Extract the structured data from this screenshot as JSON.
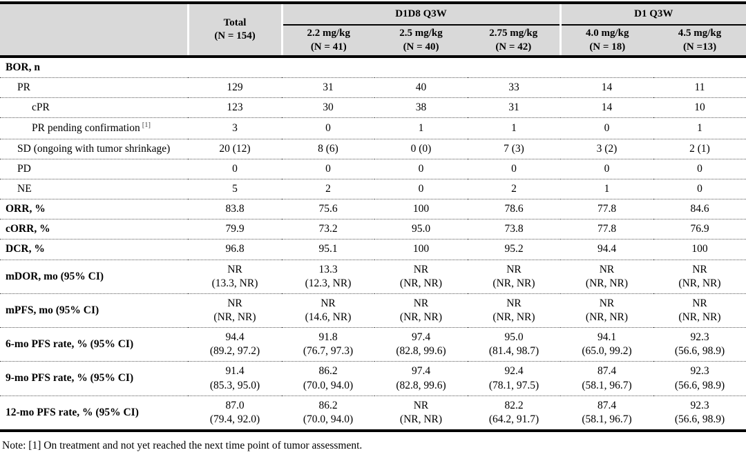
{
  "header": {
    "corner": "",
    "total": {
      "line1": "Total",
      "line2": "(N = 154)"
    },
    "groups": [
      {
        "label": "D1D8 Q3W",
        "cols": [
          {
            "dose": "2.2 mg/kg",
            "n": "(N = 41)"
          },
          {
            "dose": "2.5 mg/kg",
            "n": "(N = 40)"
          },
          {
            "dose": "2.75 mg/kg",
            "n": "(N = 42)"
          }
        ]
      },
      {
        "label": "D1 Q3W",
        "cols": [
          {
            "dose": "4.0 mg/kg",
            "n": "(N = 18)"
          },
          {
            "dose": "4.5 mg/kg",
            "n": "(N =13)"
          }
        ]
      }
    ]
  },
  "rows": [
    {
      "label": "BOR, n",
      "bold": true,
      "indent": 0,
      "values": [
        "",
        "",
        "",
        "",
        "",
        ""
      ]
    },
    {
      "label": "PR",
      "bold": false,
      "indent": 1,
      "values": [
        "129",
        "31",
        "40",
        "33",
        "14",
        "11"
      ]
    },
    {
      "label": "cPR",
      "bold": false,
      "indent": 2,
      "values": [
        "123",
        "30",
        "38",
        "31",
        "14",
        "10"
      ]
    },
    {
      "label": "PR pending confirmation",
      "sup": "[1]",
      "bold": false,
      "indent": 2,
      "values": [
        "3",
        "0",
        "1",
        "1",
        "0",
        "1"
      ]
    },
    {
      "label": "SD (ongoing with tumor shrinkage)",
      "bold": false,
      "indent": 1,
      "values": [
        "20 (12)",
        "8 (6)",
        "0 (0)",
        "7 (3)",
        "3 (2)",
        "2 (1)"
      ]
    },
    {
      "label": "PD",
      "bold": false,
      "indent": 1,
      "values": [
        "0",
        "0",
        "0",
        "0",
        "0",
        "0"
      ]
    },
    {
      "label": "NE",
      "bold": false,
      "indent": 1,
      "values": [
        "5",
        "2",
        "0",
        "2",
        "1",
        "0"
      ]
    },
    {
      "label": "ORR, %",
      "bold": true,
      "indent": 0,
      "values": [
        "83.8",
        "75.6",
        "100",
        "78.6",
        "77.8",
        "84.6"
      ]
    },
    {
      "label": "cORR, %",
      "bold": true,
      "indent": 0,
      "values": [
        "79.9",
        "73.2",
        "95.0",
        "73.8",
        "77.8",
        "76.9"
      ]
    },
    {
      "label": "DCR, %",
      "bold": true,
      "indent": 0,
      "values": [
        "96.8",
        "95.1",
        "100",
        "95.2",
        "94.4",
        "100"
      ]
    },
    {
      "label": "mDOR, mo (95% CI)",
      "bold": true,
      "indent": 0,
      "values": [
        "NR\n(13.3, NR)",
        "13.3\n(12.3, NR)",
        "NR\n(NR, NR)",
        "NR\n(NR, NR)",
        "NR\n(NR, NR)",
        "NR\n(NR, NR)"
      ]
    },
    {
      "label": "mPFS, mo (95% CI)",
      "bold": true,
      "indent": 0,
      "values": [
        "NR\n(NR, NR)",
        "NR\n(14.6, NR)",
        "NR\n(NR, NR)",
        "NR\n(NR, NR)",
        "NR\n(NR, NR)",
        "NR\n(NR, NR)"
      ]
    },
    {
      "label": "6-mo PFS rate, % (95% CI)",
      "bold": true,
      "indent": 0,
      "values": [
        "94.4\n(89.2, 97.2)",
        "91.8\n(76.7, 97.3)",
        "97.4\n(82.8, 99.6)",
        "95.0\n(81.4, 98.7)",
        "94.1\n(65.0, 99.2)",
        "92.3\n(56.6, 98.9)"
      ]
    },
    {
      "label": "9-mo PFS rate, % (95% CI)",
      "bold": true,
      "indent": 0,
      "values": [
        "91.4\n(85.3, 95.0)",
        "86.2\n(70.0, 94.0)",
        "97.4\n(82.8, 99.6)",
        "92.4\n(78.1, 97.5)",
        "87.4\n(58.1, 96.7)",
        "92.3\n(56.6, 98.9)"
      ]
    },
    {
      "label": "12-mo PFS rate, % (95% CI)",
      "bold": true,
      "indent": 0,
      "values": [
        "87.0\n(79.4, 92.0)",
        "86.2\n(70.0, 94.0)",
        "NR\n(NR, NR)",
        "82.2\n(64.2, 91.7)",
        "87.4\n(58.1, 96.7)",
        "92.3\n(56.6, 98.9)"
      ]
    }
  ],
  "note": "Note: [1] On treatment and not yet reached the next time point of tumor assessment."
}
